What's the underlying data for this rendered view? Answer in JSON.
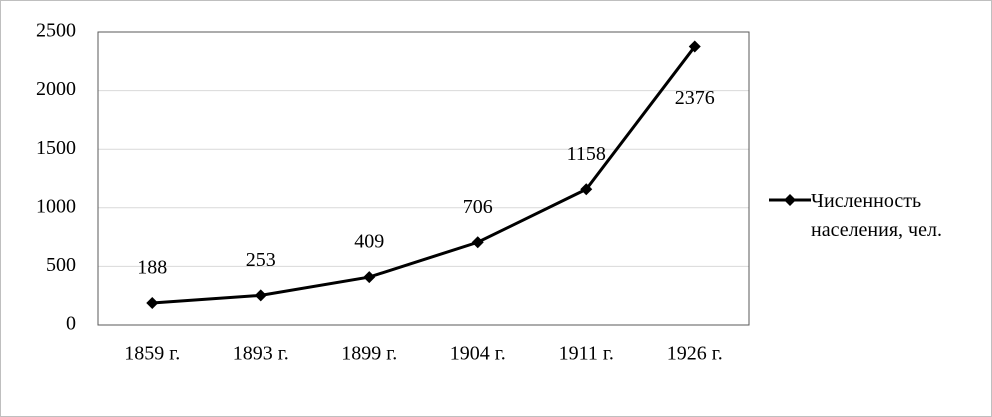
{
  "chart_data": {
    "type": "line",
    "categories": [
      "1859 г.",
      "1893 г.",
      "1899 г.",
      "1904 г.",
      "1911 г.",
      "1926 г."
    ],
    "series": [
      {
        "name": "Численность населения, чел.",
        "color": "#000000",
        "values": [
          188,
          253,
          409,
          706,
          1158,
          2376
        ]
      }
    ],
    "ylim": [
      0,
      2500
    ],
    "yticks": [
      0,
      500,
      1000,
      1500,
      2000,
      2500
    ],
    "grid": true,
    "legend": "right"
  }
}
